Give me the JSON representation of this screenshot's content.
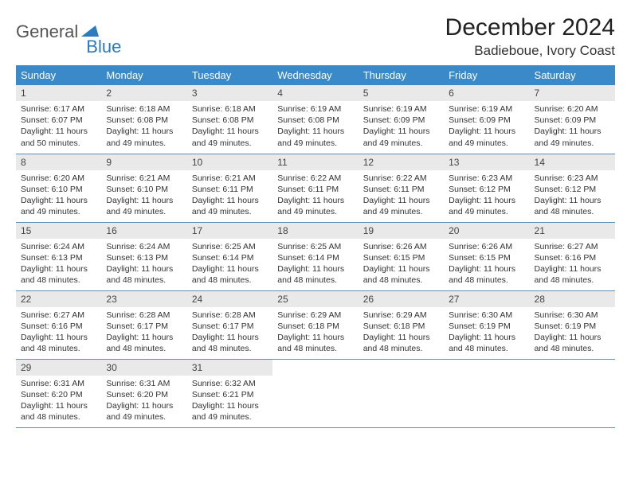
{
  "logo": {
    "text1": "General",
    "text2": "Blue"
  },
  "title": "December 2024",
  "location": "Badieboue, Ivory Coast",
  "colors": {
    "header_bg": "#3a89c9",
    "header_text": "#ffffff",
    "daynum_bg": "#e9e9e9",
    "row_border": "#5a8fb8",
    "logo_gray": "#555555",
    "logo_blue": "#2b7bbf"
  },
  "weekdays": [
    "Sunday",
    "Monday",
    "Tuesday",
    "Wednesday",
    "Thursday",
    "Friday",
    "Saturday"
  ],
  "days": [
    {
      "n": 1,
      "sr": "6:17 AM",
      "ss": "6:07 PM",
      "dl": "11 hours and 50 minutes."
    },
    {
      "n": 2,
      "sr": "6:18 AM",
      "ss": "6:08 PM",
      "dl": "11 hours and 49 minutes."
    },
    {
      "n": 3,
      "sr": "6:18 AM",
      "ss": "6:08 PM",
      "dl": "11 hours and 49 minutes."
    },
    {
      "n": 4,
      "sr": "6:19 AM",
      "ss": "6:08 PM",
      "dl": "11 hours and 49 minutes."
    },
    {
      "n": 5,
      "sr": "6:19 AM",
      "ss": "6:09 PM",
      "dl": "11 hours and 49 minutes."
    },
    {
      "n": 6,
      "sr": "6:19 AM",
      "ss": "6:09 PM",
      "dl": "11 hours and 49 minutes."
    },
    {
      "n": 7,
      "sr": "6:20 AM",
      "ss": "6:09 PM",
      "dl": "11 hours and 49 minutes."
    },
    {
      "n": 8,
      "sr": "6:20 AM",
      "ss": "6:10 PM",
      "dl": "11 hours and 49 minutes."
    },
    {
      "n": 9,
      "sr": "6:21 AM",
      "ss": "6:10 PM",
      "dl": "11 hours and 49 minutes."
    },
    {
      "n": 10,
      "sr": "6:21 AM",
      "ss": "6:11 PM",
      "dl": "11 hours and 49 minutes."
    },
    {
      "n": 11,
      "sr": "6:22 AM",
      "ss": "6:11 PM",
      "dl": "11 hours and 49 minutes."
    },
    {
      "n": 12,
      "sr": "6:22 AM",
      "ss": "6:11 PM",
      "dl": "11 hours and 49 minutes."
    },
    {
      "n": 13,
      "sr": "6:23 AM",
      "ss": "6:12 PM",
      "dl": "11 hours and 49 minutes."
    },
    {
      "n": 14,
      "sr": "6:23 AM",
      "ss": "6:12 PM",
      "dl": "11 hours and 48 minutes."
    },
    {
      "n": 15,
      "sr": "6:24 AM",
      "ss": "6:13 PM",
      "dl": "11 hours and 48 minutes."
    },
    {
      "n": 16,
      "sr": "6:24 AM",
      "ss": "6:13 PM",
      "dl": "11 hours and 48 minutes."
    },
    {
      "n": 17,
      "sr": "6:25 AM",
      "ss": "6:14 PM",
      "dl": "11 hours and 48 minutes."
    },
    {
      "n": 18,
      "sr": "6:25 AM",
      "ss": "6:14 PM",
      "dl": "11 hours and 48 minutes."
    },
    {
      "n": 19,
      "sr": "6:26 AM",
      "ss": "6:15 PM",
      "dl": "11 hours and 48 minutes."
    },
    {
      "n": 20,
      "sr": "6:26 AM",
      "ss": "6:15 PM",
      "dl": "11 hours and 48 minutes."
    },
    {
      "n": 21,
      "sr": "6:27 AM",
      "ss": "6:16 PM",
      "dl": "11 hours and 48 minutes."
    },
    {
      "n": 22,
      "sr": "6:27 AM",
      "ss": "6:16 PM",
      "dl": "11 hours and 48 minutes."
    },
    {
      "n": 23,
      "sr": "6:28 AM",
      "ss": "6:17 PM",
      "dl": "11 hours and 48 minutes."
    },
    {
      "n": 24,
      "sr": "6:28 AM",
      "ss": "6:17 PM",
      "dl": "11 hours and 48 minutes."
    },
    {
      "n": 25,
      "sr": "6:29 AM",
      "ss": "6:18 PM",
      "dl": "11 hours and 48 minutes."
    },
    {
      "n": 26,
      "sr": "6:29 AM",
      "ss": "6:18 PM",
      "dl": "11 hours and 48 minutes."
    },
    {
      "n": 27,
      "sr": "6:30 AM",
      "ss": "6:19 PM",
      "dl": "11 hours and 48 minutes."
    },
    {
      "n": 28,
      "sr": "6:30 AM",
      "ss": "6:19 PM",
      "dl": "11 hours and 48 minutes."
    },
    {
      "n": 29,
      "sr": "6:31 AM",
      "ss": "6:20 PM",
      "dl": "11 hours and 48 minutes."
    },
    {
      "n": 30,
      "sr": "6:31 AM",
      "ss": "6:20 PM",
      "dl": "11 hours and 49 minutes."
    },
    {
      "n": 31,
      "sr": "6:32 AM",
      "ss": "6:21 PM",
      "dl": "11 hours and 49 minutes."
    }
  ],
  "labels": {
    "sunrise": "Sunrise:",
    "sunset": "Sunset:",
    "daylight": "Daylight:"
  }
}
